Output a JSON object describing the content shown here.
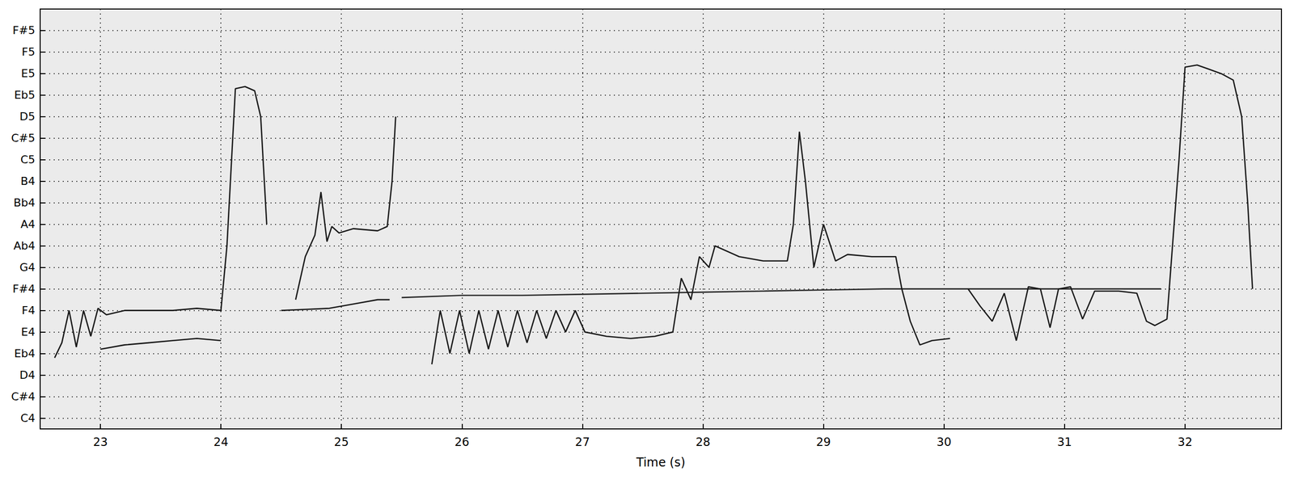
{
  "chart_data": {
    "type": "line",
    "xlabel": "Time (s)",
    "xlim": [
      22.5,
      32.8
    ],
    "xticks": [
      23,
      24,
      25,
      26,
      27,
      28,
      29,
      30,
      31,
      32
    ],
    "ylim": [
      59.5,
      79.0
    ],
    "yticks": [
      {
        "value": 60,
        "label": "C4"
      },
      {
        "value": 61,
        "label": "C#4"
      },
      {
        "value": 62,
        "label": "D4"
      },
      {
        "value": 63,
        "label": "Eb4"
      },
      {
        "value": 64,
        "label": "E4"
      },
      {
        "value": 65,
        "label": "F4"
      },
      {
        "value": 66,
        "label": "F#4"
      },
      {
        "value": 67,
        "label": "G4"
      },
      {
        "value": 68,
        "label": "Ab4"
      },
      {
        "value": 69,
        "label": "A4"
      },
      {
        "value": 70,
        "label": "Bb4"
      },
      {
        "value": 71,
        "label": "B4"
      },
      {
        "value": 72,
        "label": "C5"
      },
      {
        "value": 73,
        "label": "C#5"
      },
      {
        "value": 74,
        "label": "D5"
      },
      {
        "value": 75,
        "label": "Eb5"
      },
      {
        "value": 76,
        "label": "E5"
      },
      {
        "value": 77,
        "label": "F5"
      },
      {
        "value": 78,
        "label": "F#5"
      }
    ],
    "grid": true,
    "marker": "none",
    "series": [
      {
        "color": "#1a1a1a",
        "x": [
          22.62,
          22.68,
          22.74,
          22.8,
          22.86,
          22.92,
          22.98,
          23.05,
          23.2,
          23.4,
          23.6,
          23.8,
          24.0,
          24.05,
          24.12,
          24.2,
          24.28,
          24.33,
          24.38,
          24.45,
          24.5,
          24.7,
          24.9,
          25.1,
          25.3,
          25.4
        ],
        "values": [
          62.8,
          63.5,
          65.0,
          63.3,
          65.0,
          63.8,
          65.1,
          64.8,
          65.0,
          65.0,
          65.0,
          65.1,
          65.0,
          68.0,
          75.3,
          75.4,
          75.2,
          74.0,
          69.0,
          null,
          65.0,
          65.05,
          65.1,
          65.3,
          65.5,
          65.5
        ]
      },
      {
        "color": "#1a1a1a",
        "x": [
          23.0,
          23.2,
          23.4,
          23.6,
          23.8,
          24.0,
          24.3,
          24.62,
          24.7,
          24.78,
          24.83,
          24.88,
          24.92,
          24.98,
          25.1,
          25.3,
          25.38,
          25.42,
          25.45
        ],
        "values": [
          63.2,
          63.4,
          63.5,
          63.6,
          63.7,
          63.6,
          null,
          65.5,
          67.5,
          68.5,
          70.5,
          68.2,
          68.9,
          68.6,
          68.8,
          68.7,
          68.9,
          71.0,
          74.0
        ]
      },
      {
        "color": "#2a2a2a",
        "x": [
          25.5,
          26.0,
          26.5,
          27.0,
          27.5,
          28.0,
          28.5,
          29.0,
          29.5,
          30.0,
          30.5,
          31.0,
          31.5,
          31.8
        ],
        "values": [
          65.6,
          65.7,
          65.7,
          65.75,
          65.8,
          65.85,
          65.9,
          65.95,
          66.0,
          66.0,
          66.0,
          66.0,
          66.0,
          66.0
        ]
      },
      {
        "color": "#1a1a1a",
        "x": [
          25.75,
          25.82,
          25.9,
          25.98,
          26.06,
          26.14,
          26.22,
          26.3,
          26.38,
          26.46,
          26.54,
          26.62,
          26.7,
          26.78,
          26.86,
          26.94,
          27.02,
          27.2,
          27.4,
          27.6,
          27.75,
          27.82,
          27.9,
          27.97,
          28.05,
          28.1,
          28.3,
          28.5,
          28.7,
          28.75,
          28.8,
          28.85,
          28.92,
          29.0,
          29.1,
          29.2,
          29.4,
          29.6,
          29.65,
          29.72,
          29.8,
          29.9,
          30.05,
          30.12,
          30.2,
          30.3,
          30.4,
          30.5,
          30.6,
          30.7,
          30.8,
          30.88,
          30.95,
          31.05,
          31.15,
          31.25,
          31.45,
          31.6,
          31.68,
          31.75,
          31.85,
          31.95,
          32.0,
          32.1,
          32.2,
          32.3,
          32.4,
          32.47,
          32.52,
          32.56
        ],
        "values": [
          62.5,
          65.0,
          63.0,
          65.0,
          63.0,
          65.0,
          63.2,
          65.0,
          63.3,
          65.0,
          63.5,
          65.0,
          63.7,
          65.0,
          64.0,
          65.0,
          64.0,
          63.8,
          63.7,
          63.8,
          64.0,
          66.5,
          65.5,
          67.5,
          67.0,
          68.0,
          67.5,
          67.3,
          67.3,
          69.0,
          73.3,
          71.0,
          67.0,
          69.0,
          67.3,
          67.6,
          67.5,
          67.5,
          66.0,
          64.5,
          63.4,
          63.6,
          63.7,
          null,
          66.0,
          65.2,
          64.5,
          65.8,
          63.6,
          66.1,
          66.0,
          64.2,
          66.0,
          66.1,
          64.6,
          65.9,
          65.9,
          65.8,
          64.5,
          64.3,
          64.6,
          72.0,
          76.3,
          76.4,
          76.2,
          76.0,
          75.7,
          74.0,
          70.0,
          66.0
        ]
      }
    ]
  }
}
